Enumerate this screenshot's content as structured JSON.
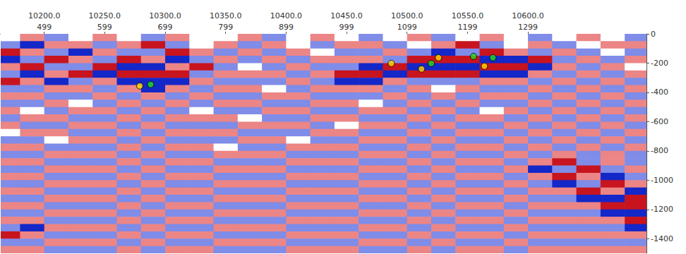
{
  "chart_data": {
    "type": "heatmap",
    "xlim": [
      10164,
      10698
    ],
    "xticks": [
      {
        "value": 10200,
        "label": "10200.0"
      },
      {
        "value": 10250,
        "label": "10250.0"
      },
      {
        "value": 10300,
        "label": "10300.0"
      },
      {
        "value": 10350,
        "label": "10350.0"
      },
      {
        "value": 10400,
        "label": "10400.0"
      },
      {
        "value": 10450,
        "label": "10450.0"
      },
      {
        "value": 10500,
        "label": "10500.0"
      },
      {
        "value": 10550,
        "label": "10550.0"
      },
      {
        "value": 10600,
        "label": "10600.0"
      }
    ],
    "x2lim": [
      427,
      1495
    ],
    "x2ticks": [
      499,
      599,
      699,
      799,
      899,
      999,
      1099,
      1199,
      1299
    ],
    "ylim": [
      -1500,
      0
    ],
    "yticks": [
      0,
      -200,
      -400,
      -600,
      -800,
      -1000,
      -1200,
      -1400
    ],
    "amplitude": {
      "zlim": [
        -2,
        2
      ],
      "x": [
        10170,
        10190,
        10210,
        10230,
        10250,
        10270,
        10290,
        10310,
        10330,
        10350,
        10370,
        10390,
        10410,
        10430,
        10450,
        10470,
        10490,
        10510,
        10530,
        10550,
        10570,
        10590,
        10610,
        10630,
        10650,
        10670,
        10690
      ],
      "y": [
        -25,
        -75,
        -125,
        -175,
        -225,
        -275,
        -325,
        -375,
        -425,
        -475,
        -525,
        -575,
        -625,
        -675,
        -725,
        -775,
        -825,
        -875,
        -925,
        -975,
        -1025,
        -1075,
        -1125,
        -1175,
        -1225,
        -1275,
        -1325,
        -1375,
        -1425,
        -1475
      ],
      "values": [
        [
          0,
          1,
          -1,
          0,
          1,
          0,
          -1,
          1,
          0,
          0,
          1,
          -1,
          0,
          1,
          0,
          -1,
          0,
          1,
          -1,
          0,
          1,
          0,
          -1,
          0,
          1,
          0,
          -1
        ],
        [
          -1,
          -2,
          1,
          1,
          -1,
          1,
          2,
          -1,
          0,
          1,
          -1,
          1,
          0,
          -1,
          1,
          1,
          -1,
          0,
          1,
          2,
          -1,
          0,
          1,
          -1,
          0,
          1,
          1
        ],
        [
          2,
          1,
          -1,
          -2,
          1,
          -1,
          -1,
          2,
          1,
          -1,
          1,
          -1,
          1,
          0,
          -1,
          -1,
          1,
          -1,
          -2,
          -1,
          2,
          1,
          -1,
          1,
          -1,
          0,
          -1
        ],
        [
          -2,
          -1,
          2,
          1,
          -1,
          2,
          1,
          -2,
          -1,
          1,
          -1,
          1,
          -1,
          1,
          1,
          1,
          -1,
          2,
          2,
          2,
          -2,
          -2,
          2,
          -1,
          1,
          -1,
          1
        ],
        [
          1,
          2,
          -1,
          -1,
          2,
          -2,
          -2,
          1,
          2,
          -1,
          0,
          -1,
          1,
          -1,
          -1,
          -2,
          2,
          -2,
          -2,
          -2,
          2,
          2,
          -2,
          1,
          -1,
          1,
          0
        ],
        [
          -1,
          -2,
          1,
          2,
          -2,
          2,
          2,
          2,
          -1,
          1,
          1,
          1,
          -1,
          1,
          2,
          2,
          -2,
          2,
          2,
          2,
          -2,
          -2,
          1,
          -1,
          1,
          -1,
          1
        ],
        [
          2,
          1,
          -2,
          -1,
          1,
          -2,
          -2,
          -2,
          1,
          -1,
          -1,
          -1,
          1,
          -1,
          -2,
          -2,
          1,
          -1,
          -1,
          -1,
          1,
          1,
          -1,
          1,
          -1,
          1,
          -1
        ],
        [
          -1,
          -1,
          1,
          1,
          -1,
          1,
          -2,
          1,
          -1,
          1,
          1,
          0,
          -1,
          1,
          1,
          1,
          -1,
          1,
          0,
          1,
          -1,
          -1,
          1,
          -1,
          1,
          -1,
          1
        ],
        [
          1,
          1,
          -1,
          -1,
          1,
          -1,
          1,
          -1,
          1,
          -1,
          -1,
          1,
          1,
          -1,
          -1,
          -1,
          1,
          -1,
          1,
          -1,
          1,
          1,
          -1,
          1,
          -1,
          1,
          -1
        ],
        [
          -1,
          -1,
          1,
          0,
          -1,
          1,
          -1,
          1,
          -1,
          1,
          1,
          -1,
          -1,
          1,
          1,
          0,
          -1,
          1,
          -1,
          1,
          -1,
          -1,
          1,
          -1,
          1,
          -1,
          1
        ],
        [
          1,
          0,
          -1,
          1,
          1,
          -1,
          1,
          -1,
          0,
          -1,
          -1,
          1,
          1,
          -1,
          -1,
          1,
          1,
          -1,
          1,
          -1,
          0,
          1,
          -1,
          1,
          -1,
          1,
          -1
        ],
        [
          -1,
          1,
          1,
          -1,
          -1,
          1,
          -1,
          1,
          1,
          1,
          0,
          -1,
          -1,
          1,
          1,
          -1,
          -1,
          1,
          -1,
          1,
          1,
          -1,
          1,
          -1,
          1,
          -1,
          1
        ],
        [
          1,
          -1,
          -1,
          1,
          1,
          -1,
          1,
          -1,
          -1,
          -1,
          1,
          1,
          1,
          -1,
          0,
          1,
          1,
          -1,
          1,
          -1,
          -1,
          1,
          -1,
          1,
          -1,
          1,
          -1
        ],
        [
          0,
          1,
          1,
          -1,
          -1,
          1,
          -1,
          1,
          1,
          1,
          -1,
          -1,
          -1,
          1,
          1,
          -1,
          -1,
          1,
          -1,
          1,
          1,
          -1,
          1,
          -1,
          1,
          -1,
          1
        ],
        [
          -1,
          -1,
          0,
          1,
          1,
          -1,
          1,
          -1,
          -1,
          -1,
          1,
          1,
          0,
          -1,
          -1,
          1,
          1,
          -1,
          1,
          -1,
          -1,
          1,
          -1,
          1,
          -1,
          1,
          -1
        ],
        [
          1,
          1,
          -1,
          -1,
          -1,
          1,
          -1,
          1,
          1,
          0,
          -1,
          -1,
          1,
          1,
          1,
          -1,
          -1,
          1,
          -1,
          1,
          1,
          -1,
          1,
          -1,
          1,
          -1,
          1
        ],
        [
          -1,
          -1,
          1,
          1,
          1,
          -1,
          1,
          -1,
          -1,
          1,
          1,
          1,
          -1,
          -1,
          -1,
          1,
          1,
          -1,
          1,
          -1,
          -1,
          1,
          -1,
          1,
          -1,
          1,
          -1
        ],
        [
          1,
          1,
          -1,
          -1,
          -1,
          1,
          -1,
          1,
          1,
          -1,
          -1,
          -1,
          1,
          1,
          1,
          -1,
          -1,
          1,
          -1,
          1,
          1,
          -1,
          1,
          2,
          -1,
          1,
          -1
        ],
        [
          -1,
          -1,
          1,
          1,
          1,
          -1,
          1,
          -1,
          -1,
          1,
          1,
          1,
          -1,
          -1,
          -1,
          1,
          1,
          -1,
          1,
          -1,
          -1,
          1,
          -2,
          -1,
          2,
          -1,
          1
        ],
        [
          1,
          1,
          -1,
          -1,
          -1,
          1,
          -1,
          1,
          1,
          -1,
          -1,
          -1,
          1,
          1,
          1,
          -1,
          -1,
          1,
          -1,
          1,
          1,
          -1,
          1,
          2,
          1,
          -2,
          -1
        ],
        [
          -1,
          -1,
          1,
          1,
          1,
          -1,
          1,
          -1,
          -1,
          1,
          1,
          1,
          -1,
          -1,
          -1,
          1,
          1,
          -1,
          1,
          -1,
          -1,
          1,
          -1,
          -2,
          -1,
          2,
          1
        ],
        [
          1,
          1,
          -1,
          -1,
          -1,
          1,
          -1,
          1,
          1,
          -1,
          -1,
          -1,
          1,
          1,
          1,
          -1,
          -1,
          1,
          -1,
          1,
          1,
          -1,
          1,
          1,
          2,
          1,
          -2
        ],
        [
          -1,
          -1,
          1,
          1,
          1,
          -1,
          1,
          -1,
          -1,
          1,
          1,
          1,
          -1,
          -1,
          -1,
          1,
          1,
          -1,
          1,
          -1,
          -1,
          1,
          -1,
          -1,
          -2,
          -2,
          2
        ],
        [
          1,
          1,
          -1,
          -1,
          -1,
          1,
          -1,
          1,
          1,
          -1,
          -1,
          -1,
          1,
          1,
          1,
          -1,
          -1,
          1,
          -1,
          1,
          1,
          -1,
          1,
          1,
          1,
          2,
          2
        ],
        [
          -1,
          -1,
          1,
          1,
          1,
          -1,
          1,
          -1,
          -1,
          1,
          1,
          1,
          -1,
          -1,
          -1,
          1,
          1,
          -1,
          1,
          -1,
          -1,
          1,
          -1,
          -1,
          -1,
          -2,
          -2
        ],
        [
          1,
          1,
          -1,
          -1,
          -1,
          1,
          -1,
          1,
          1,
          -1,
          -1,
          -1,
          1,
          1,
          1,
          -1,
          -1,
          1,
          -1,
          1,
          1,
          -1,
          1,
          1,
          1,
          1,
          2
        ],
        [
          -1,
          -2,
          1,
          1,
          1,
          -1,
          1,
          -1,
          -1,
          1,
          1,
          1,
          -1,
          -1,
          -1,
          1,
          1,
          -1,
          1,
          -1,
          -1,
          1,
          -1,
          -1,
          -1,
          -1,
          -2
        ],
        [
          2,
          1,
          -1,
          -1,
          -1,
          1,
          -1,
          1,
          1,
          -1,
          -1,
          -1,
          1,
          1,
          1,
          -1,
          -1,
          1,
          -1,
          1,
          1,
          -1,
          1,
          1,
          1,
          1,
          1
        ],
        [
          -1,
          -1,
          1,
          1,
          1,
          -1,
          1,
          -1,
          -1,
          1,
          1,
          1,
          -1,
          -1,
          -1,
          1,
          1,
          -1,
          1,
          -1,
          -1,
          1,
          -1,
          -1,
          -1,
          -1,
          -1
        ],
        [
          1,
          1,
          -1,
          -1,
          -1,
          1,
          -1,
          1,
          1,
          -1,
          -1,
          -1,
          1,
          1,
          1,
          -1,
          -1,
          1,
          -1,
          1,
          1,
          -1,
          1,
          1,
          1,
          1,
          1
        ]
      ]
    },
    "highlights": {
      "type": "scatter",
      "x": [
        10520,
        10512,
        10526,
        10555,
        10571,
        10564,
        10288,
        10279,
        10487
      ],
      "y": [
        -202,
        -240,
        -163,
        -154,
        -163,
        -221,
        -346,
        -356,
        -202
      ],
      "colors": [
        "#22dd22",
        "#ffd700",
        "#ffd700",
        "#22dd22",
        "#22dd22",
        "#ffd700",
        "#22dd22",
        "#ffd700",
        "#ffd700"
      ]
    }
  }
}
